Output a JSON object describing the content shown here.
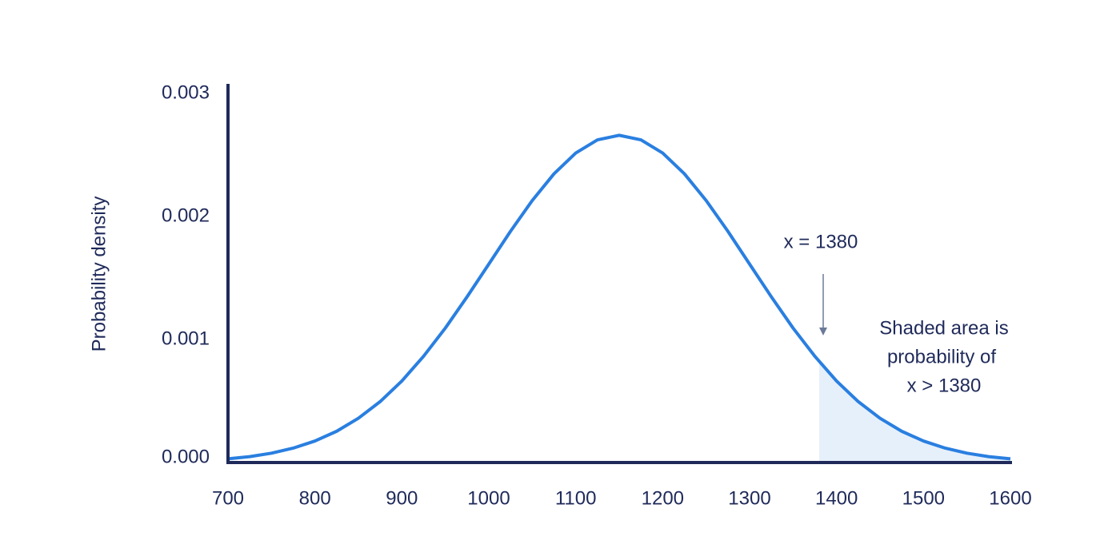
{
  "chart_data": {
    "type": "area-line",
    "ylabel": "Probability density",
    "x": [
      700,
      725,
      750,
      775,
      800,
      825,
      850,
      875,
      900,
      925,
      950,
      975,
      1000,
      1025,
      1050,
      1075,
      1100,
      1125,
      1150,
      1175,
      1200,
      1225,
      1250,
      1275,
      1300,
      1325,
      1350,
      1375,
      1400,
      1425,
      1450,
      1475,
      1500,
      1525,
      1550,
      1575,
      1600
    ],
    "values": [
      3e-05,
      4.8e-05,
      7.6e-05,
      0.000117,
      0.000175,
      0.000254,
      0.00036,
      0.000495,
      0.000663,
      0.000864,
      0.001093,
      0.001347,
      0.001613,
      0.00188,
      0.00213,
      0.002347,
      0.002516,
      0.002623,
      0.00266,
      0.002623,
      0.002516,
      0.002347,
      0.00213,
      0.00188,
      0.001613,
      0.001347,
      0.001093,
      0.000864,
      0.000663,
      0.000495,
      0.00036,
      0.000254,
      0.000175,
      0.000117,
      7.6e-05,
      4.8e-05,
      3e-05
    ],
    "color": "#2a7fe0",
    "shade_from": 1380,
    "shade_color": "#e6f0fb",
    "xlim": [
      700,
      1600
    ],
    "xticks": [
      700,
      800,
      900,
      1000,
      1100,
      1200,
      1300,
      1400,
      1500,
      1600
    ],
    "ylim": [
      0,
      0.003
    ],
    "yticks": [
      {
        "value": 0,
        "label": "0.000"
      },
      0.001,
      0.002,
      0.003
    ],
    "annotation": "x = 1380",
    "note": [
      "Shaded area is",
      "probability of",
      "x > 1380"
    ]
  }
}
